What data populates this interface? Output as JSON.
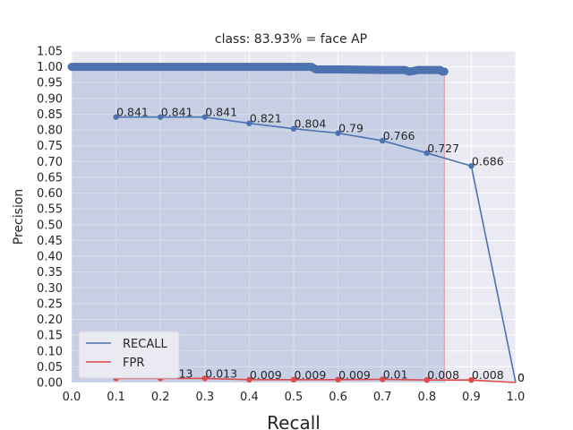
{
  "chart_data": {
    "type": "line",
    "title": "class: 83.93% = face AP",
    "xlabel": "Recall",
    "ylabel": "Precision",
    "xlim": [
      0.0,
      1.0
    ],
    "ylim": [
      0.0,
      1.05
    ],
    "x_ticks": [
      "0.0",
      "0.1",
      "0.2",
      "0.3",
      "0.4",
      "0.5",
      "0.6",
      "0.7",
      "0.8",
      "0.9",
      "1.0"
    ],
    "y_ticks": [
      "0.00",
      "0.05",
      "0.10",
      "0.15",
      "0.20",
      "0.25",
      "0.30",
      "0.35",
      "0.40",
      "0.45",
      "0.50",
      "0.55",
      "0.60",
      "0.65",
      "0.70",
      "0.75",
      "0.80",
      "0.85",
      "0.90",
      "0.95",
      "1.00",
      "1.05"
    ],
    "grid": true,
    "legend_position": "bottom-left",
    "ap_area": {
      "max_recall": 0.8393,
      "precision_curve": [
        [
          0.0,
          1.0
        ],
        [
          0.54,
          1.0
        ],
        [
          0.55,
          0.992
        ],
        [
          0.6,
          0.992
        ],
        [
          0.7,
          0.99
        ],
        [
          0.75,
          0.99
        ],
        [
          0.76,
          0.985
        ],
        [
          0.78,
          0.99
        ],
        [
          0.83,
          0.99
        ],
        [
          0.835,
          0.985
        ],
        [
          0.8393,
          0.985
        ]
      ],
      "color": "#4c72b0"
    },
    "series": [
      {
        "name": "RECALL",
        "color": "#4c72b0",
        "x": [
          0.1,
          0.2,
          0.3,
          0.4,
          0.5,
          0.6,
          0.7,
          0.8,
          0.9,
          1.0
        ],
        "values": [
          0.841,
          0.841,
          0.841,
          0.821,
          0.804,
          0.79,
          0.766,
          0.727,
          0.686,
          0
        ],
        "labels": [
          "0.841",
          "0.841",
          "0.841",
          "0.821",
          "0.804",
          "0.79",
          "0.766",
          "0.727",
          "0.686",
          "0"
        ]
      },
      {
        "name": "FPR",
        "color": "#dd4a4c",
        "x": [
          0.1,
          0.2,
          0.3,
          0.4,
          0.5,
          0.6,
          0.7,
          0.8,
          0.9,
          1.0
        ],
        "values": [
          0.013,
          0.013,
          0.013,
          0.009,
          0.009,
          0.009,
          0.01,
          0.008,
          0.008,
          0
        ],
        "labels": [
          "0.013",
          "0.013",
          "0.013",
          "0.009",
          "0.009",
          "0.009",
          "0.01",
          "0.008",
          "0.008",
          "0"
        ]
      }
    ]
  }
}
